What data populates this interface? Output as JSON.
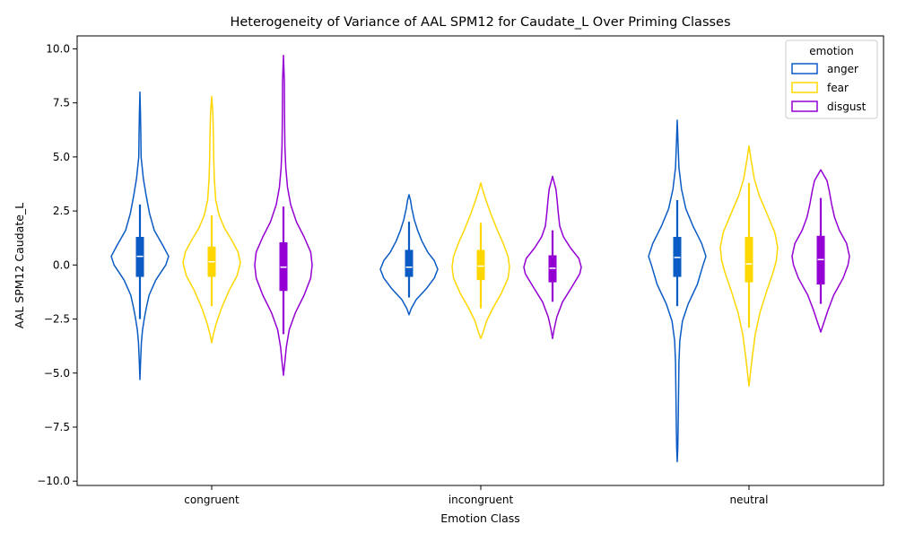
{
  "chart_data": {
    "type": "violin",
    "title": "Heterogeneity of Variance of AAL SPM12 for Caudate_L Over Priming Classes",
    "xlabel": "Emotion Class",
    "ylabel": "AAL SPM12 Caudate_L",
    "categories": [
      "congruent",
      "incongruent",
      "neutral"
    ],
    "ylim": [
      -10.2,
      10.6
    ],
    "yticks": [
      -10.0,
      -7.5,
      -5.0,
      -2.5,
      0.0,
      2.5,
      5.0,
      7.5,
      10.0
    ],
    "ytick_labels": [
      "−10.0",
      "−7.5",
      "−5.0",
      "−2.5",
      "0.0",
      "2.5",
      "5.0",
      "7.5",
      "10.0"
    ],
    "legend": {
      "title": "emotion",
      "placement": "top-right"
    },
    "grid": false,
    "series": [
      {
        "name": "anger",
        "color": "#0a5bc4",
        "violins": [
          {
            "category": "congruent",
            "box": {
              "whisker_low": -2.5,
              "q1": -0.55,
              "median": 0.4,
              "q3": 1.3,
              "whisker_high": 2.8
            },
            "profile": [
              [
                -5.3,
                0
              ],
              [
                -4.6,
                0.02
              ],
              [
                -3.6,
                0.05
              ],
              [
                -3.0,
                0.09
              ],
              [
                -2.5,
                0.15
              ],
              [
                -2.0,
                0.22
              ],
              [
                -1.4,
                0.32
              ],
              [
                -0.7,
                0.55
              ],
              [
                0.0,
                0.9
              ],
              [
                0.4,
                1.0
              ],
              [
                0.9,
                0.8
              ],
              [
                1.6,
                0.5
              ],
              [
                2.4,
                0.33
              ],
              [
                3.2,
                0.22
              ],
              [
                4.0,
                0.12
              ],
              [
                5.0,
                0.04
              ],
              [
                6.0,
                0.03
              ],
              [
                7.0,
                0.02
              ],
              [
                8.0,
                0
              ]
            ]
          },
          {
            "category": "incongruent",
            "box": {
              "whisker_low": -1.5,
              "q1": -0.55,
              "median": -0.1,
              "q3": 0.7,
              "whisker_high": 2.0
            },
            "profile": [
              [
                -2.3,
                0
              ],
              [
                -2.0,
                0.08
              ],
              [
                -1.6,
                0.25
              ],
              [
                -1.1,
                0.6
              ],
              [
                -0.6,
                0.88
              ],
              [
                -0.2,
                1.0
              ],
              [
                0.2,
                0.88
              ],
              [
                0.6,
                0.65
              ],
              [
                1.1,
                0.45
              ],
              [
                1.6,
                0.3
              ],
              [
                2.1,
                0.18
              ],
              [
                2.6,
                0.1
              ],
              [
                3.0,
                0.05
              ],
              [
                3.25,
                0
              ]
            ]
          },
          {
            "category": "neutral",
            "box": {
              "whisker_low": -1.9,
              "q1": -0.55,
              "median": 0.35,
              "q3": 1.3,
              "whisker_high": 3.0
            },
            "profile": [
              [
                -9.1,
                0
              ],
              [
                -8.5,
                0.02
              ],
              [
                -7.5,
                0.03
              ],
              [
                -6.5,
                0.04
              ],
              [
                -5.5,
                0.05
              ],
              [
                -4.5,
                0.06
              ],
              [
                -3.5,
                0.09
              ],
              [
                -2.6,
                0.18
              ],
              [
                -1.8,
                0.38
              ],
              [
                -0.9,
                0.7
              ],
              [
                0.0,
                0.9
              ],
              [
                0.4,
                1.0
              ],
              [
                1.0,
                0.85
              ],
              [
                1.8,
                0.55
              ],
              [
                2.6,
                0.3
              ],
              [
                3.5,
                0.15
              ],
              [
                4.5,
                0.06
              ],
              [
                5.5,
                0.03
              ],
              [
                6.7,
                0
              ]
            ]
          }
        ]
      },
      {
        "name": "fear",
        "color": "#ffd700",
        "violins": [
          {
            "category": "congruent",
            "box": {
              "whisker_low": -1.9,
              "q1": -0.55,
              "median": 0.15,
              "q3": 0.85,
              "whisker_high": 2.3
            },
            "profile": [
              [
                -3.6,
                0
              ],
              [
                -3.2,
                0.06
              ],
              [
                -2.7,
                0.16
              ],
              [
                -2.0,
                0.34
              ],
              [
                -1.2,
                0.6
              ],
              [
                -0.5,
                0.88
              ],
              [
                0.1,
                1.0
              ],
              [
                0.6,
                0.92
              ],
              [
                1.1,
                0.72
              ],
              [
                1.7,
                0.45
              ],
              [
                2.3,
                0.26
              ],
              [
                3.0,
                0.14
              ],
              [
                4.0,
                0.09
              ],
              [
                5.0,
                0.07
              ],
              [
                6.0,
                0.06
              ],
              [
                7.0,
                0.04
              ],
              [
                7.8,
                0
              ]
            ]
          },
          {
            "category": "incongruent",
            "box": {
              "whisker_low": -2.0,
              "q1": -0.7,
              "median": -0.05,
              "q3": 0.7,
              "whisker_high": 1.95
            },
            "profile": [
              [
                -3.4,
                0
              ],
              [
                -3.1,
                0.08
              ],
              [
                -2.6,
                0.2
              ],
              [
                -2.0,
                0.42
              ],
              [
                -1.3,
                0.72
              ],
              [
                -0.6,
                0.95
              ],
              [
                -0.1,
                1.0
              ],
              [
                0.4,
                0.95
              ],
              [
                1.0,
                0.78
              ],
              [
                1.7,
                0.55
              ],
              [
                2.4,
                0.34
              ],
              [
                3.0,
                0.18
              ],
              [
                3.5,
                0.06
              ],
              [
                3.8,
                0
              ]
            ]
          },
          {
            "category": "neutral",
            "box": {
              "whisker_low": -2.9,
              "q1": -0.8,
              "median": 0.05,
              "q3": 1.3,
              "whisker_high": 3.8
            },
            "profile": [
              [
                -5.6,
                0
              ],
              [
                -5.0,
                0.05
              ],
              [
                -4.2,
                0.12
              ],
              [
                -3.2,
                0.22
              ],
              [
                -2.2,
                0.38
              ],
              [
                -1.2,
                0.62
              ],
              [
                -0.3,
                0.85
              ],
              [
                0.2,
                0.95
              ],
              [
                0.8,
                1.0
              ],
              [
                1.5,
                0.9
              ],
              [
                2.3,
                0.65
              ],
              [
                3.2,
                0.36
              ],
              [
                4.0,
                0.18
              ],
              [
                4.8,
                0.08
              ],
              [
                5.5,
                0
              ]
            ]
          }
        ]
      },
      {
        "name": "disgust",
        "color": "#9400d3",
        "violins": [
          {
            "category": "congruent",
            "box": {
              "whisker_low": -3.2,
              "q1": -1.2,
              "median": -0.1,
              "q3": 1.05,
              "whisker_high": 2.7
            },
            "profile": [
              [
                -5.1,
                0
              ],
              [
                -4.6,
                0.04
              ],
              [
                -3.8,
                0.1
              ],
              [
                -3.0,
                0.2
              ],
              [
                -2.2,
                0.42
              ],
              [
                -1.4,
                0.72
              ],
              [
                -0.6,
                0.95
              ],
              [
                0.0,
                1.0
              ],
              [
                0.6,
                0.95
              ],
              [
                1.3,
                0.72
              ],
              [
                2.0,
                0.45
              ],
              [
                2.8,
                0.25
              ],
              [
                3.6,
                0.14
              ],
              [
                4.5,
                0.08
              ],
              [
                5.5,
                0.05
              ],
              [
                6.5,
                0.04
              ],
              [
                7.5,
                0.035
              ],
              [
                8.5,
                0.03
              ],
              [
                9.7,
                0
              ]
            ]
          },
          {
            "category": "incongruent",
            "box": {
              "whisker_low": -1.7,
              "q1": -0.8,
              "median": -0.15,
              "q3": 0.45,
              "whisker_high": 1.6
            },
            "profile": [
              [
                -3.4,
                0
              ],
              [
                -3.0,
                0.05
              ],
              [
                -2.4,
                0.15
              ],
              [
                -1.7,
                0.35
              ],
              [
                -1.0,
                0.68
              ],
              [
                -0.4,
                0.95
              ],
              [
                -0.1,
                1.0
              ],
              [
                0.3,
                0.92
              ],
              [
                0.8,
                0.62
              ],
              [
                1.3,
                0.38
              ],
              [
                1.8,
                0.25
              ],
              [
                2.4,
                0.2
              ],
              [
                3.0,
                0.16
              ],
              [
                3.5,
                0.12
              ],
              [
                4.1,
                0
              ]
            ]
          },
          {
            "category": "neutral",
            "box": {
              "whisker_low": -1.8,
              "q1": -0.9,
              "median": 0.25,
              "q3": 1.35,
              "whisker_high": 3.1
            },
            "profile": [
              [
                -3.1,
                0
              ],
              [
                -2.7,
                0.1
              ],
              [
                -2.1,
                0.25
              ],
              [
                -1.4,
                0.45
              ],
              [
                -0.6,
                0.78
              ],
              [
                0.0,
                0.95
              ],
              [
                0.4,
                1.0
              ],
              [
                1.0,
                0.9
              ],
              [
                1.6,
                0.65
              ],
              [
                2.2,
                0.48
              ],
              [
                2.8,
                0.38
              ],
              [
                3.4,
                0.3
              ],
              [
                3.9,
                0.22
              ],
              [
                4.4,
                0
              ]
            ]
          }
        ]
      }
    ]
  }
}
